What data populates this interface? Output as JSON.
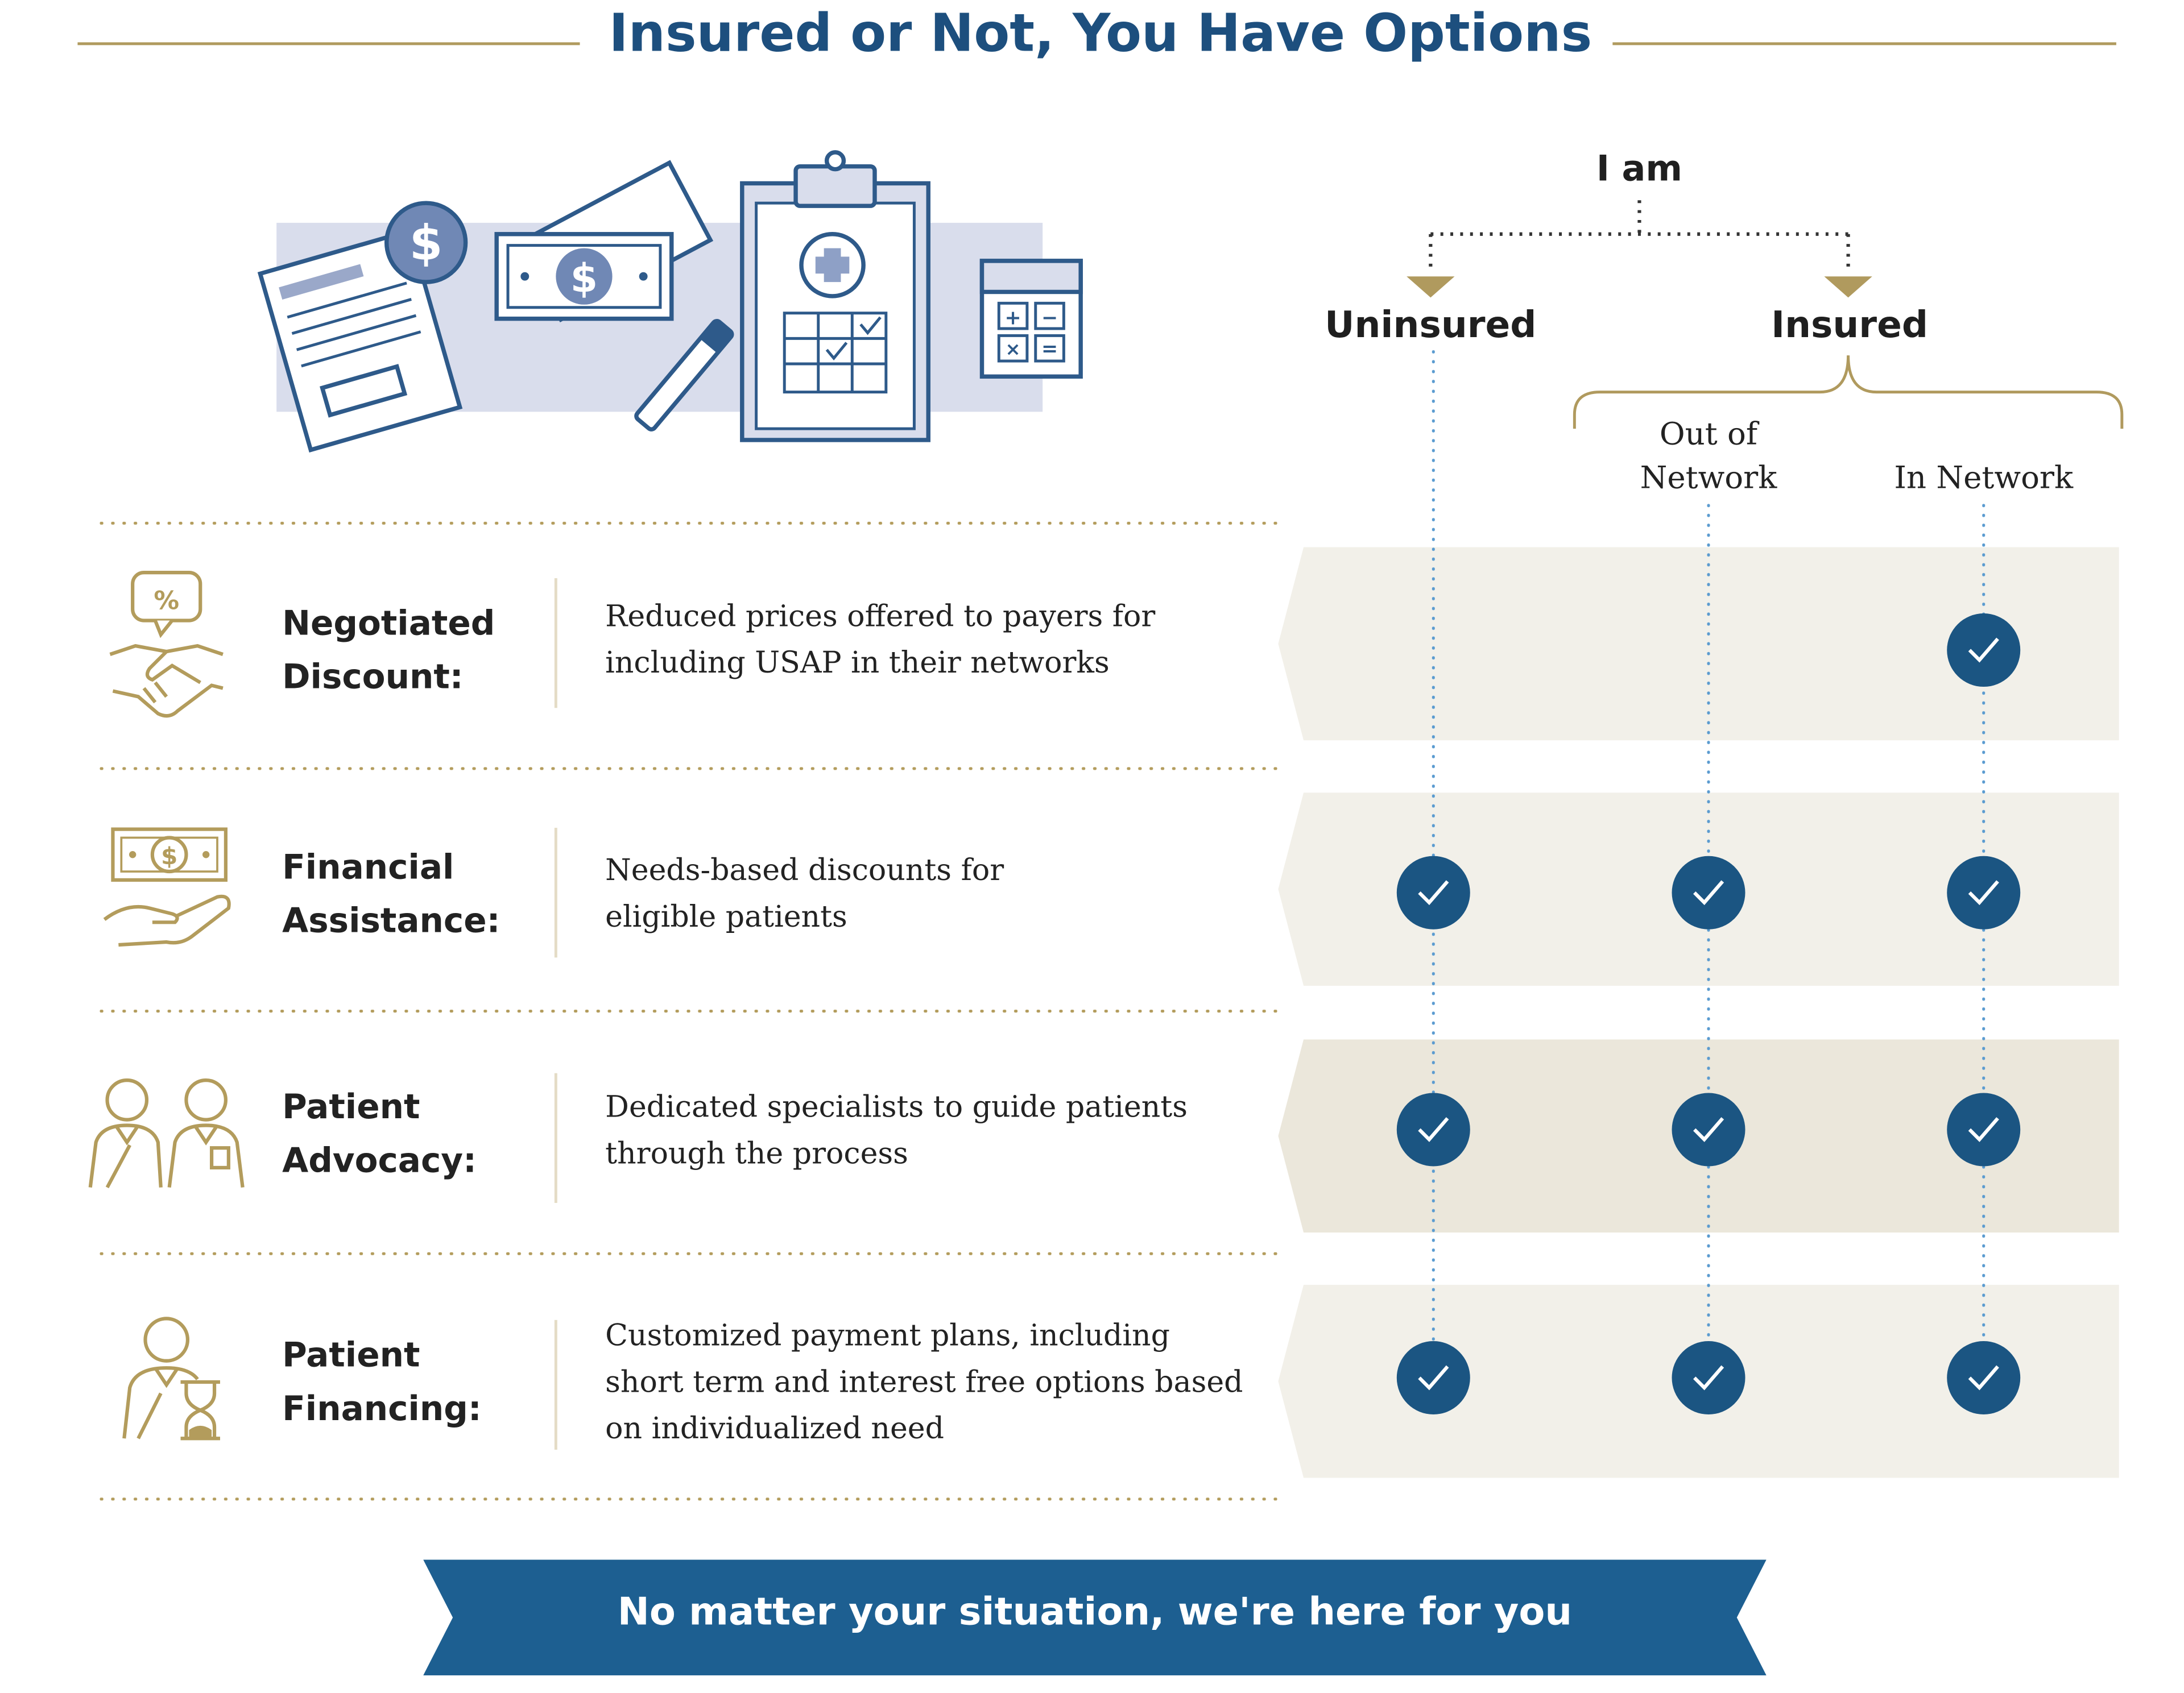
{
  "title": "Insured or Not, You Have Options",
  "header": {
    "i_am": "I am",
    "uninsured": "Uninsured",
    "insured": "Insured",
    "out_of_network": "Out of Network",
    "in_network": "In Network"
  },
  "rows": [
    {
      "label": "Negotiated Discount:",
      "description": "Reduced prices offered to payers for including USAP in their networks",
      "icon": "handshake-percent-icon",
      "uninsured": false,
      "out_of_network": false,
      "in_network": true
    },
    {
      "label": "Financial Assistance:",
      "description": "Needs-based discounts for eligible patients",
      "icon": "hand-money-icon",
      "uninsured": true,
      "out_of_network": true,
      "in_network": true
    },
    {
      "label": "Patient Advocacy:",
      "description": "Dedicated specialists to guide patients through the process",
      "icon": "two-people-icon",
      "uninsured": true,
      "out_of_network": true,
      "in_network": true
    },
    {
      "label": "Patient Financing:",
      "description": "Customized payment plans, including short term and interest free options based on individualized need",
      "icon": "person-hourglass-icon",
      "uninsured": true,
      "out_of_network": true,
      "in_network": true
    }
  ],
  "banner": "No matter your situation, we're here for you",
  "colors": {
    "navy": "#1d4f7e",
    "check_blue": "#1b5582",
    "gold": "#b09a5e",
    "row_bg": "#f2f0e9",
    "row_bg_alt": "#ebe7db",
    "banner_blue": "#1d5f91"
  }
}
